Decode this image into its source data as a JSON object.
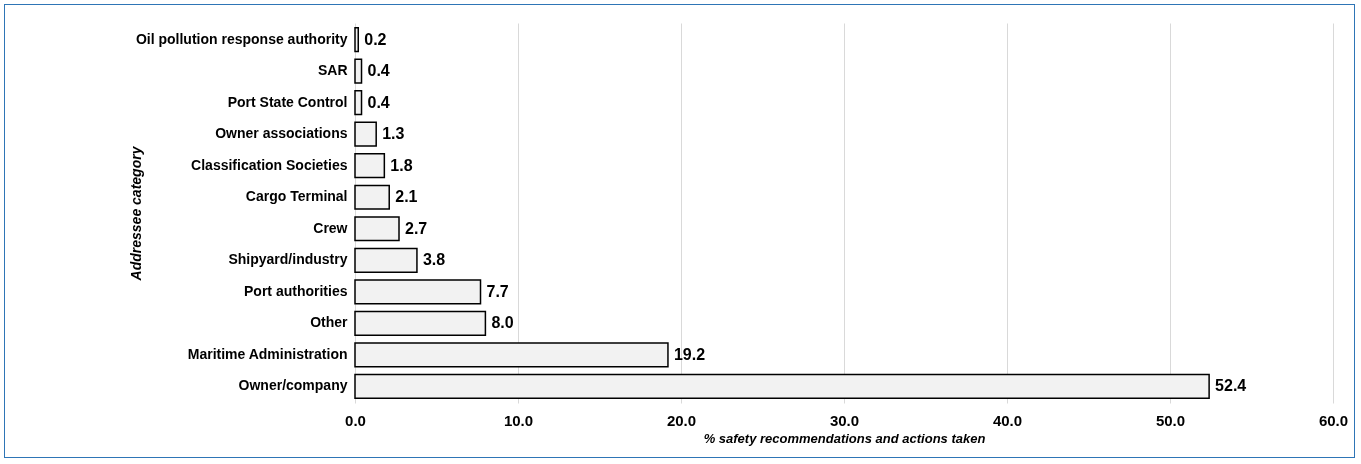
{
  "chart_data": {
    "type": "bar",
    "orientation": "horizontal",
    "xlabel": "% safety recommendations and actions taken",
    "ylabel": "Addressee category",
    "categories": [
      "Oil pollution response authority",
      "SAR",
      "Port State Control",
      "Owner associations",
      "Classification Societies",
      "Cargo Terminal",
      "Crew",
      "Shipyard/industry",
      "Port authorities",
      "Other",
      "Maritime Administration",
      "Owner/company"
    ],
    "values": [
      0.2,
      0.4,
      0.4,
      1.3,
      1.8,
      2.1,
      2.7,
      3.8,
      7.7,
      8.0,
      19.2,
      52.4
    ],
    "value_labels": [
      "0.2",
      "0.4",
      "0.4",
      "1.3",
      "1.8",
      "2.1",
      "2.7",
      "3.8",
      "7.7",
      "8.0",
      "19.2",
      "52.4"
    ],
    "color": "#f2f2f2",
    "xlim": [
      0,
      60
    ],
    "xticks": [
      {
        "value": 0,
        "label": "0.0"
      },
      {
        "value": 10,
        "label": "10.0"
      },
      {
        "value": 20,
        "label": "20.0"
      },
      {
        "value": 30,
        "label": "30.0"
      },
      {
        "value": 40,
        "label": "40.0"
      },
      {
        "value": 50,
        "label": "50.0"
      },
      {
        "value": 60,
        "label": "60.0"
      }
    ],
    "grid": "x"
  }
}
